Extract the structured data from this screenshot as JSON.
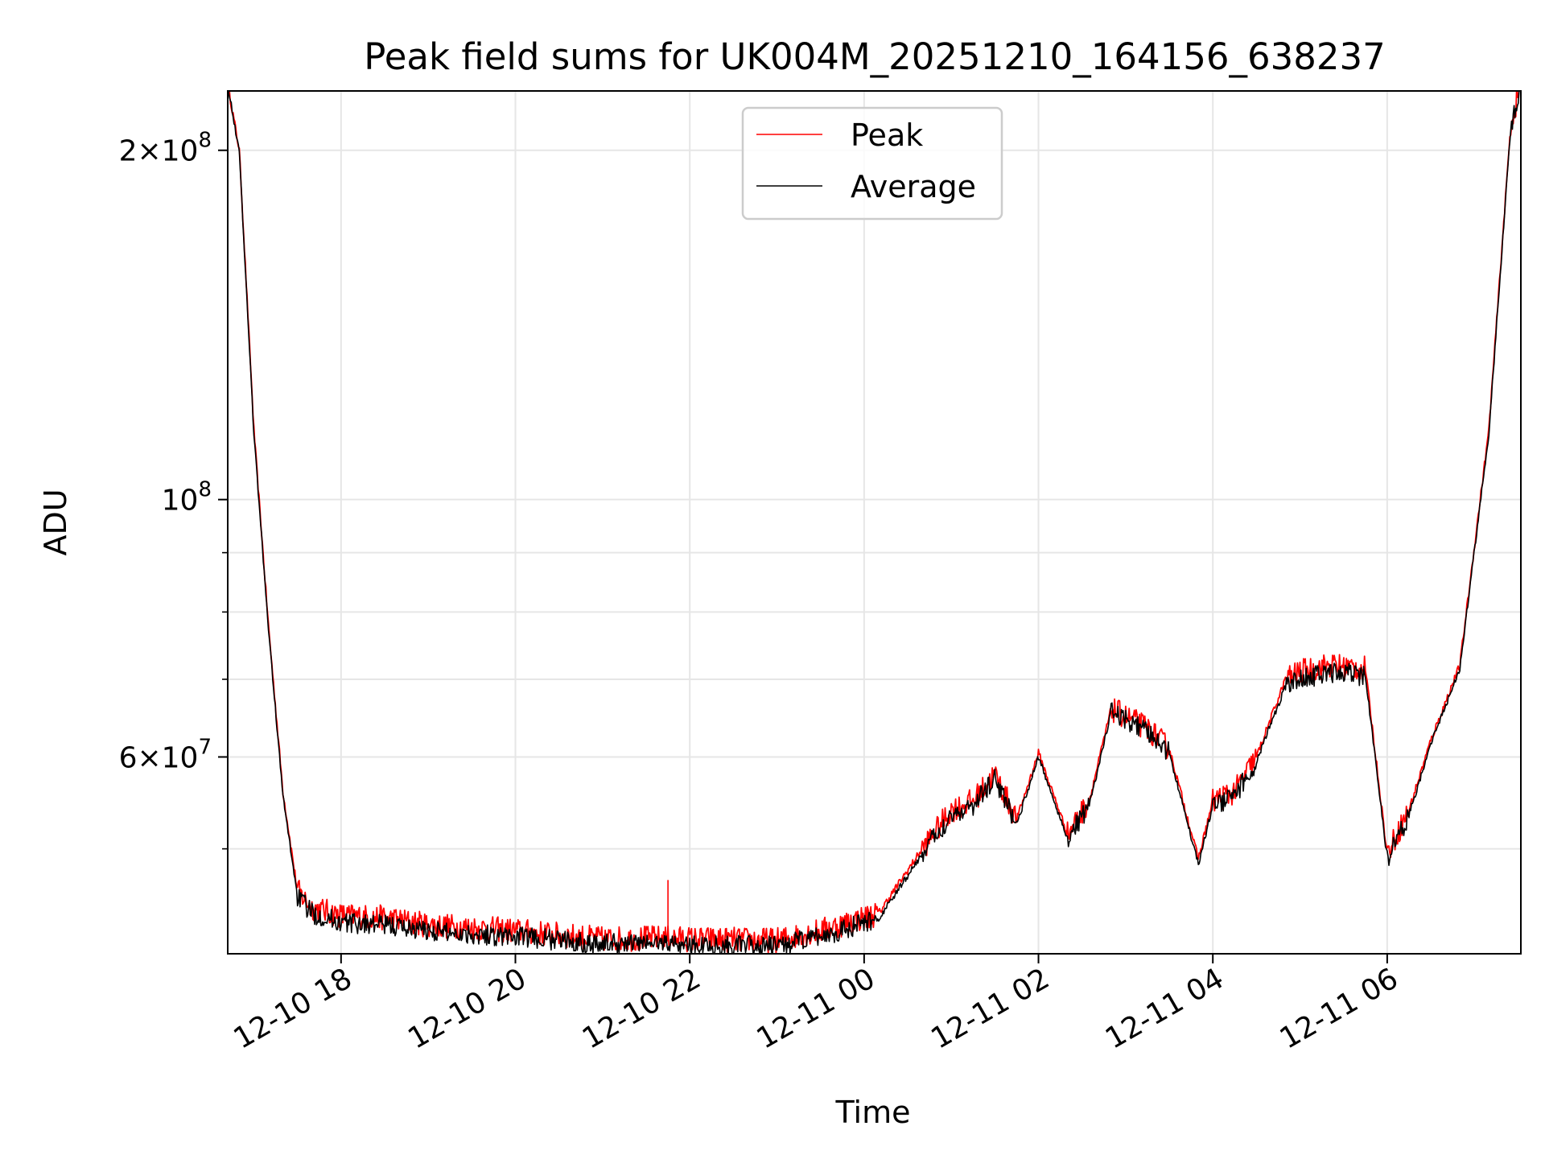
{
  "chart_data": {
    "type": "line",
    "title": "Peak field sums for UK004M_20251210_164156_638237",
    "xlabel": "Time",
    "ylabel": "ADU",
    "y_scale": "log",
    "grid": true,
    "legend_position": "upper-center",
    "xlim": [
      "2025-12-10 16:42",
      "2025-12-11 07:32"
    ],
    "ylim": [
      40600000,
      225000000
    ],
    "x_ticks": [
      {
        "value": "2025-12-10 18:00",
        "label": "12-10 18"
      },
      {
        "value": "2025-12-10 20:00",
        "label": "12-10 20"
      },
      {
        "value": "2025-12-10 22:00",
        "label": "12-10 22"
      },
      {
        "value": "2025-12-11 00:00",
        "label": "12-11 00"
      },
      {
        "value": "2025-12-11 02:00",
        "label": "12-11 02"
      },
      {
        "value": "2025-12-11 04:00",
        "label": "12-11 04"
      },
      {
        "value": "2025-12-11 06:00",
        "label": "12-11 06"
      }
    ],
    "y_major_ticks": [
      {
        "value": 60000000,
        "base": "6",
        "exp": "7"
      },
      {
        "value": 100000000,
        "base": "",
        "exp": "8"
      },
      {
        "value": 200000000,
        "base": "2",
        "exp": "8"
      }
    ],
    "y_minor_ticks": [
      50000000,
      70000000,
      80000000,
      90000000
    ],
    "series": [
      {
        "name": "Peak",
        "color": "#ff0000",
        "x": [
          "2025-12-10 16:42",
          "2025-12-10 16:50",
          "2025-12-10 17:00",
          "2025-12-10 17:10",
          "2025-12-10 17:20",
          "2025-12-10 17:30",
          "2025-12-10 17:40",
          "2025-12-10 18:00",
          "2025-12-10 18:30",
          "2025-12-10 19:00",
          "2025-12-10 20:00",
          "2025-12-10 21:00",
          "2025-12-10 21:45",
          "2025-12-10 22:00",
          "2025-12-10 23:00",
          "2025-12-10 23:30",
          "2025-12-11 00:10",
          "2025-12-11 00:40",
          "2025-12-11 01:00",
          "2025-12-11 01:15",
          "2025-12-11 01:30",
          "2025-12-11 01:45",
          "2025-12-11 02:00",
          "2025-12-11 02:20",
          "2025-12-11 02:35",
          "2025-12-11 02:50",
          "2025-12-11 03:00",
          "2025-12-11 03:15",
          "2025-12-11 03:30",
          "2025-12-11 03:50",
          "2025-12-11 04:00",
          "2025-12-11 04:15",
          "2025-12-11 04:30",
          "2025-12-11 04:50",
          "2025-12-11 05:00",
          "2025-12-11 05:20",
          "2025-12-11 05:45",
          "2025-12-11 06:00",
          "2025-12-11 06:15",
          "2025-12-11 06:30",
          "2025-12-11 06:50",
          "2025-12-11 07:10",
          "2025-12-11 07:25",
          "2025-12-11 07:32"
        ],
        "y": [
          228000000,
          200000000,
          115000000,
          78000000,
          56000000,
          46000000,
          44500000,
          43800000,
          43600000,
          43000000,
          42500000,
          41800000,
          41900000,
          41800000,
          41700000,
          42500000,
          44000000,
          50000000,
          54000000,
          55000000,
          58000000,
          53000000,
          60500000,
          51500000,
          55000000,
          66000000,
          65000000,
          63500000,
          61000000,
          49000000,
          55000000,
          56000000,
          60000000,
          70000000,
          71000000,
          72000000,
          71500000,
          49500000,
          54000000,
          62000000,
          72000000,
          115000000,
          210000000,
          228000000
        ]
      },
      {
        "name": "Average",
        "color": "#000000",
        "x": [
          "2025-12-10 16:42",
          "2025-12-10 16:50",
          "2025-12-10 17:00",
          "2025-12-10 17:10",
          "2025-12-10 17:20",
          "2025-12-10 17:30",
          "2025-12-10 17:40",
          "2025-12-10 18:00",
          "2025-12-10 18:30",
          "2025-12-10 19:00",
          "2025-12-10 20:00",
          "2025-12-10 21:00",
          "2025-12-10 21:45",
          "2025-12-10 22:00",
          "2025-12-10 23:00",
          "2025-12-10 23:30",
          "2025-12-11 00:10",
          "2025-12-11 00:40",
          "2025-12-11 01:00",
          "2025-12-11 01:15",
          "2025-12-11 01:30",
          "2025-12-11 01:45",
          "2025-12-11 02:00",
          "2025-12-11 02:20",
          "2025-12-11 02:35",
          "2025-12-11 02:50",
          "2025-12-11 03:00",
          "2025-12-11 03:15",
          "2025-12-11 03:30",
          "2025-12-11 03:50",
          "2025-12-11 04:00",
          "2025-12-11 04:15",
          "2025-12-11 04:30",
          "2025-12-11 04:50",
          "2025-12-11 05:00",
          "2025-12-11 05:20",
          "2025-12-11 05:45",
          "2025-12-11 06:00",
          "2025-12-11 06:15",
          "2025-12-11 06:30",
          "2025-12-11 06:50",
          "2025-12-11 07:10",
          "2025-12-11 07:25",
          "2025-12-11 07:32"
        ],
        "y": [
          228000000,
          199000000,
          114000000,
          77500000,
          55500000,
          45500000,
          44000000,
          43200000,
          43000000,
          42500000,
          42000000,
          41400000,
          41500000,
          41300000,
          41200000,
          42000000,
          43500000,
          49500000,
          53500000,
          54500000,
          57500000,
          52500000,
          60000000,
          51000000,
          54500000,
          65500000,
          64500000,
          63000000,
          60500000,
          48500000,
          54500000,
          55500000,
          59500000,
          69000000,
          70000000,
          71000000,
          70500000,
          49000000,
          53500000,
          61500000,
          71500000,
          114000000,
          209000000,
          228000000
        ]
      }
    ]
  }
}
